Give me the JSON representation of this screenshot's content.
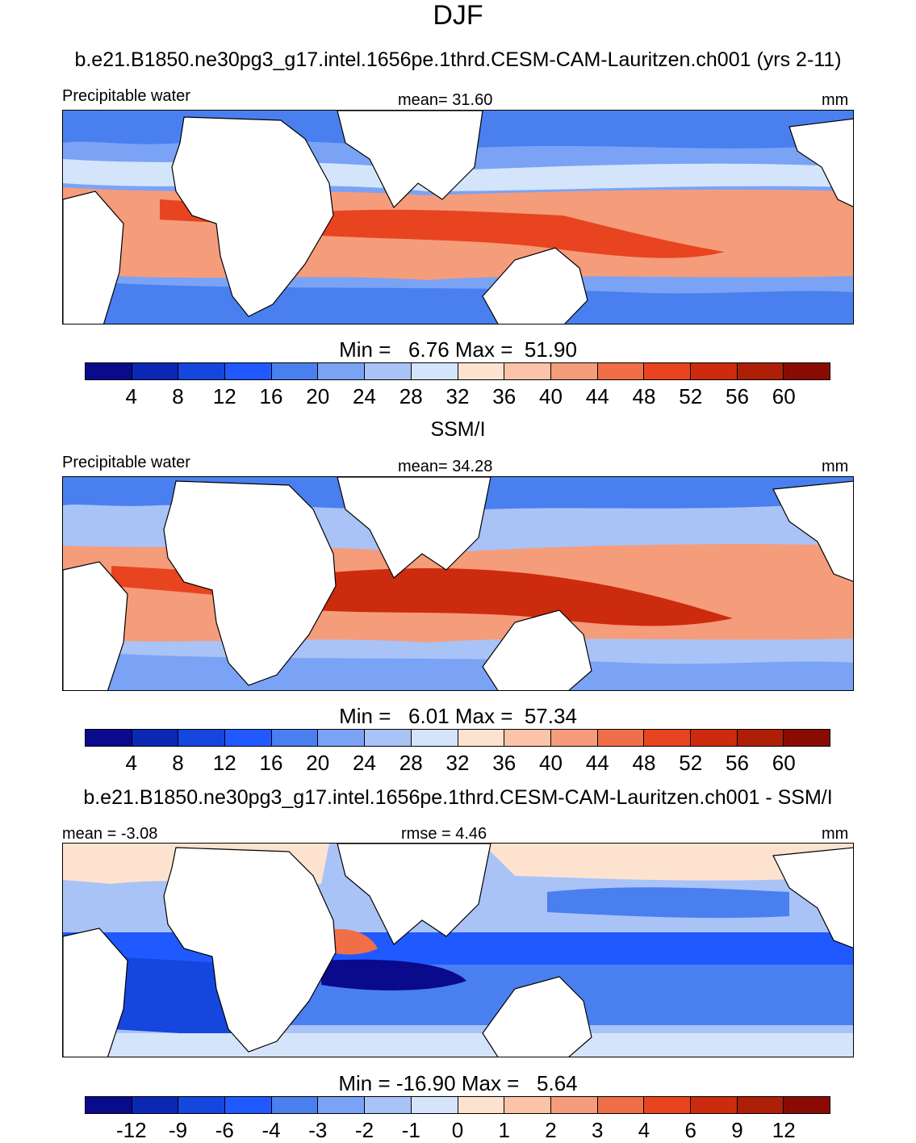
{
  "title": "DJF",
  "model_case": "b.e21.B1850.ne30pg3_g17.intel.1656pe.1thrd.CESM-CAM-Lauritzen.ch001 (yrs 2-11)",
  "obs_title": "SSM/I",
  "diff_title": "b.e21.B1850.ne30pg3_g17.intel.1656pe.1thrd.CESM-CAM-Lauritzen.ch001 - SSM/I",
  "colors": {
    "palette": [
      "#0a0a8c",
      "#0b28b4",
      "#1546de",
      "#2059ff",
      "#4a7ff0",
      "#7aa3f5",
      "#a9c3f7",
      "#d4e5fb",
      "#fde3cf",
      "#fbc4a8",
      "#f59c7b",
      "#f06f48",
      "#e8441f",
      "#cc2b0e",
      "#ae1f08",
      "#8a0b03"
    ],
    "land": "#ffffff",
    "coast": "#000000"
  },
  "panels": [
    {
      "id": "model",
      "left_label": "Precipitable water",
      "center_label": "mean=  31.60",
      "units": "mm",
      "minmax": "Min =   6.76 Max =  51.90",
      "ticks": [
        "4",
        "8",
        "12",
        "16",
        "20",
        "24",
        "28",
        "32",
        "36",
        "40",
        "44",
        "48",
        "52",
        "56",
        "60"
      ]
    },
    {
      "id": "obs",
      "left_label": "Precipitable water",
      "center_label": "mean=  34.28",
      "units": "mm",
      "minmax": "Min =   6.01 Max =  57.34",
      "ticks": [
        "4",
        "8",
        "12",
        "16",
        "20",
        "24",
        "28",
        "32",
        "36",
        "40",
        "44",
        "48",
        "52",
        "56",
        "60"
      ]
    },
    {
      "id": "diff",
      "left_label": "mean =  -3.08",
      "center_label": "rmse =   4.46",
      "units": "mm",
      "minmax": "Min = -16.90 Max =   5.64",
      "ticks": [
        "-12",
        "-9",
        "-6",
        "-4",
        "-3",
        "-2",
        "-1",
        "0",
        "1",
        "2",
        "3",
        "4",
        "6",
        "9",
        "12"
      ]
    }
  ]
}
